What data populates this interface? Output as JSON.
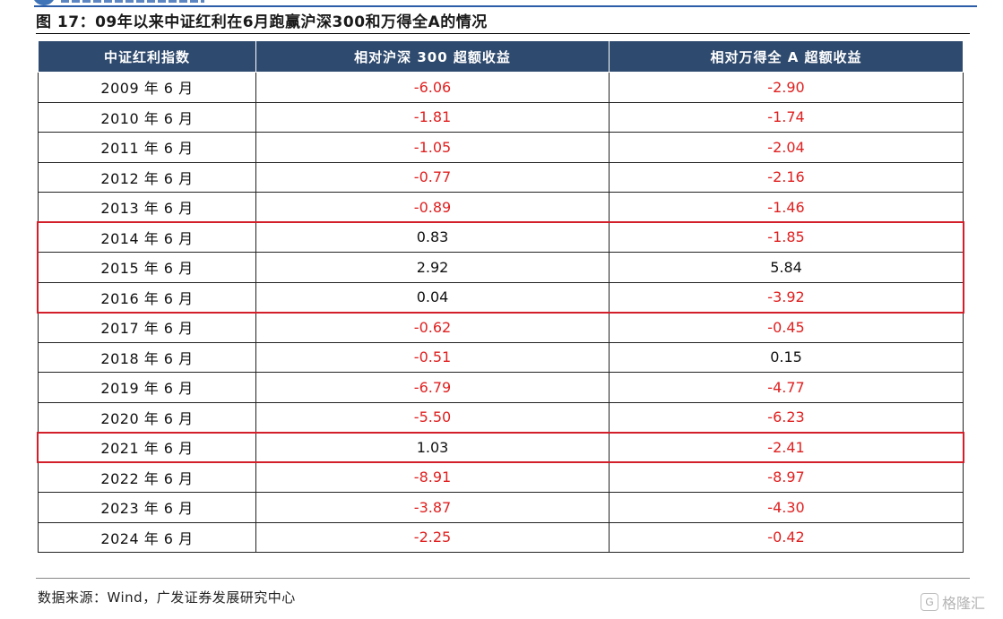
{
  "figure": {
    "title": "图 17：09年以来中证红利在6月跑赢沪深300和万得全A的情况"
  },
  "table": {
    "headers": [
      "中证红利指数",
      "相对沪深 300 超额收益",
      "相对万得全 A 超额收益"
    ],
    "rows": [
      {
        "period": "2009 年 6 月",
        "vs_hs300": "-6.06",
        "vs_wind_a": "-2.90"
      },
      {
        "period": "2010 年 6 月",
        "vs_hs300": "-1.81",
        "vs_wind_a": "-1.74"
      },
      {
        "period": "2011 年 6 月",
        "vs_hs300": "-1.05",
        "vs_wind_a": "-2.04"
      },
      {
        "period": "2012 年 6 月",
        "vs_hs300": "-0.77",
        "vs_wind_a": "-2.16"
      },
      {
        "period": "2013 年 6 月",
        "vs_hs300": "-0.89",
        "vs_wind_a": "-1.46"
      },
      {
        "period": "2014 年 6 月",
        "vs_hs300": "0.83",
        "vs_wind_a": "-1.85"
      },
      {
        "period": "2015 年 6 月",
        "vs_hs300": "2.92",
        "vs_wind_a": "5.84"
      },
      {
        "period": "2016 年 6 月",
        "vs_hs300": "0.04",
        "vs_wind_a": "-3.92"
      },
      {
        "period": "2017 年 6 月",
        "vs_hs300": "-0.62",
        "vs_wind_a": "-0.45"
      },
      {
        "period": "2018 年 6 月",
        "vs_hs300": "-0.51",
        "vs_wind_a": "0.15"
      },
      {
        "period": "2019 年 6 月",
        "vs_hs300": "-6.79",
        "vs_wind_a": "-4.77"
      },
      {
        "period": "2020 年 6 月",
        "vs_hs300": "-5.50",
        "vs_wind_a": "-6.23"
      },
      {
        "period": "2021 年 6 月",
        "vs_hs300": "1.03",
        "vs_wind_a": "-2.41"
      },
      {
        "period": "2022 年 6 月",
        "vs_hs300": "-8.91",
        "vs_wind_a": "-8.97"
      },
      {
        "period": "2023 年 6 月",
        "vs_hs300": "-3.87",
        "vs_wind_a": "-4.30"
      },
      {
        "period": "2024 年 6 月",
        "vs_hs300": "-2.25",
        "vs_wind_a": "-0.42"
      }
    ],
    "highlighted_row_groups": [
      [
        5,
        7
      ],
      [
        12,
        12
      ]
    ]
  },
  "source": {
    "note": "数据来源：Wind，广发证券发展研究中心"
  },
  "watermark": {
    "icon": "G",
    "text": "格隆汇"
  },
  "colors": {
    "header_bg": "#2e4a6e",
    "negative": "#e02020",
    "positive": "#111111",
    "highlight_border": "#d21f2a"
  }
}
